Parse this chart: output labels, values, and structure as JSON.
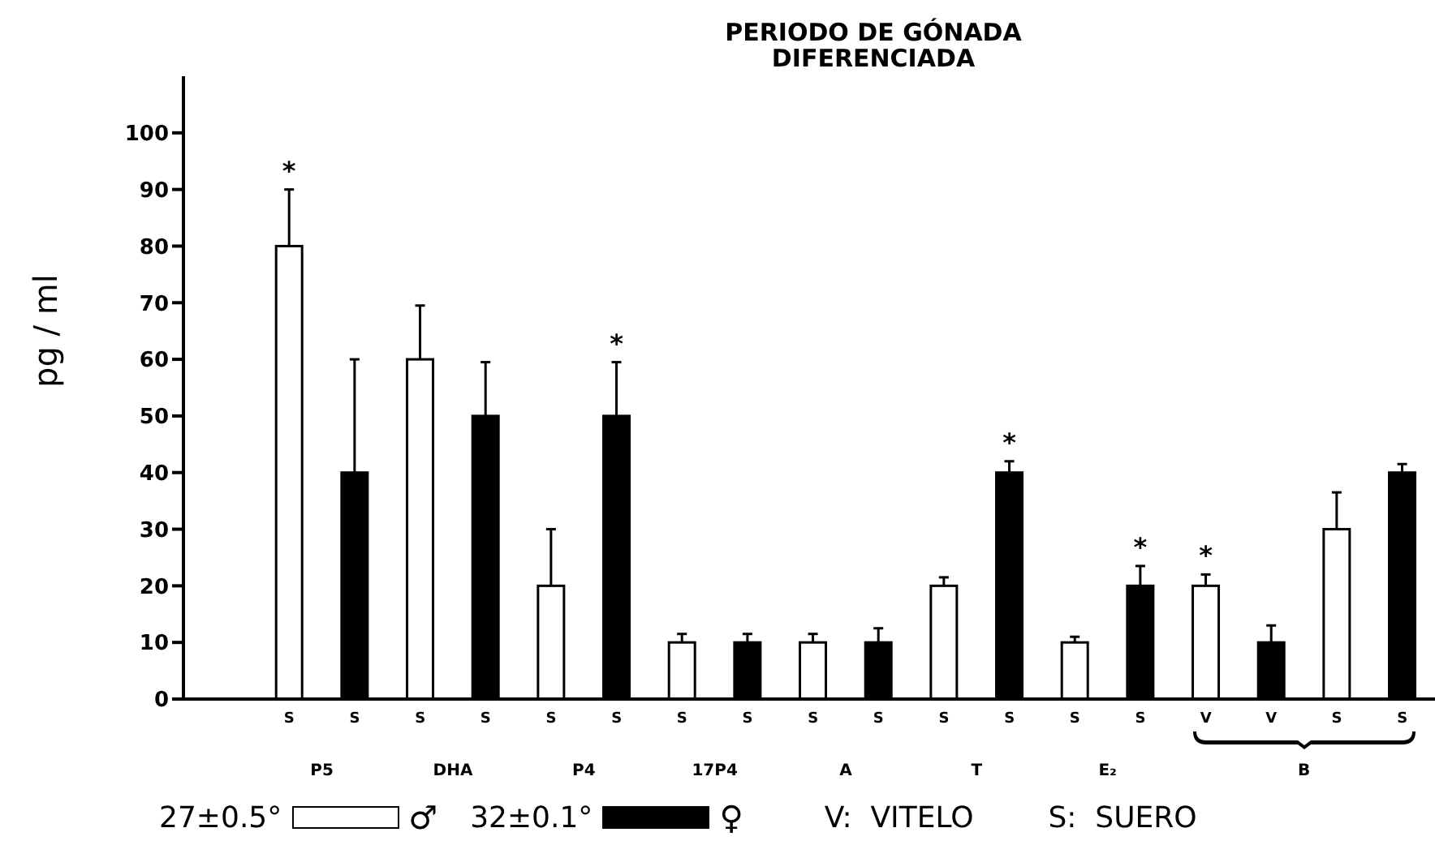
{
  "chart_data": {
    "type": "bar",
    "title": "PERIODO DE GÓNADA\nDIFERENCIADA",
    "ylabel": "pg / ml",
    "categories": [
      "S",
      "S",
      "S",
      "S",
      "S",
      "S",
      "S",
      "S",
      "S",
      "S",
      "S",
      "S",
      "S",
      "S",
      "V",
      "V",
      "S",
      "S"
    ],
    "series": [
      {
        "name": "27±0.5°",
        "color": "#ffffff",
        "values": [
          80,
          null,
          60,
          null,
          20,
          null,
          10,
          null,
          10,
          null,
          20,
          null,
          10,
          null,
          20,
          null,
          30,
          null
        ],
        "errors": [
          [
            80,
            90
          ],
          null,
          [
            60,
            69.5
          ],
          null,
          [
            20,
            30
          ],
          null,
          [
            10,
            11.5
          ],
          null,
          [
            10,
            11.5
          ],
          null,
          [
            20,
            21.5
          ],
          null,
          [
            10,
            11
          ],
          null,
          [
            20,
            22
          ],
          null,
          [
            30,
            36.5
          ],
          null
        ],
        "value_labels": [
          "*",
          null,
          null,
          null,
          null,
          null,
          null,
          null,
          null,
          null,
          null,
          null,
          null,
          null,
          "*",
          null,
          null,
          null
        ]
      },
      {
        "name": "32±0.1°",
        "color": "#000000",
        "values": [
          null,
          40,
          null,
          50,
          null,
          50,
          null,
          10,
          null,
          10,
          null,
          40,
          null,
          20,
          null,
          10,
          null,
          40
        ],
        "errors": [
          null,
          [
            40,
            60
          ],
          null,
          [
            50,
            59.5
          ],
          null,
          [
            50,
            59.5
          ],
          null,
          [
            10,
            11.5
          ],
          null,
          [
            10,
            12.5
          ],
          null,
          [
            40,
            42
          ],
          null,
          [
            20,
            23.5
          ],
          null,
          [
            10,
            13
          ],
          null,
          [
            40,
            41.5
          ]
        ],
        "value_labels": [
          null,
          null,
          null,
          null,
          null,
          "*",
          null,
          null,
          null,
          null,
          null,
          "*",
          null,
          "*",
          null,
          null,
          null,
          null
        ]
      }
    ],
    "ylim": [
      0,
      110
    ],
    "yticks": [
      0,
      10,
      20,
      30,
      40,
      50,
      60,
      70,
      80,
      90,
      100
    ],
    "grid": false,
    "legend": "bottom",
    "annotations": [
      "P5",
      "DHA",
      "P4",
      "17P4",
      "A",
      "T",
      "E₂",
      "B",
      "♂",
      "♀",
      "V:  VITELO",
      "S:  SUERO"
    ]
  }
}
